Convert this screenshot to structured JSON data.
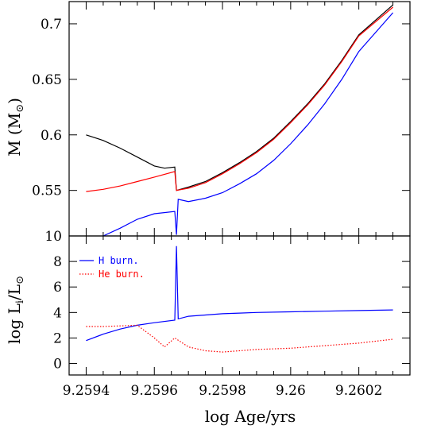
{
  "chart_data": [
    {
      "type": "line",
      "panel": "top",
      "ylabel": "M",
      "ylabel_unit": "M",
      "ylabel_sub": "⊙",
      "xlim": [
        9.25935,
        9.26035
      ],
      "ylim": [
        0.509,
        0.72
      ],
      "y_ticks": [
        0.55,
        0.6,
        0.65,
        0.7
      ],
      "y_tick_labels": [
        "0.55",
        "0.6",
        "0.65",
        "0.7"
      ],
      "series": [
        {
          "color": "#000000",
          "description_key": "total",
          "points": [
            [
              9.2594,
              0.6
            ],
            [
              9.25945,
              0.595
            ],
            [
              9.2595,
              0.588
            ],
            [
              9.25955,
              0.58
            ],
            [
              9.2596,
              0.572
            ],
            [
              9.25963,
              0.57
            ],
            [
              9.25966,
              0.571
            ],
            [
              9.259665,
              0.55
            ],
            [
              9.2597,
              0.553
            ],
            [
              9.25975,
              0.558
            ],
            [
              9.2598,
              0.566
            ],
            [
              9.25985,
              0.575
            ],
            [
              9.2599,
              0.585
            ],
            [
              9.25995,
              0.597
            ],
            [
              9.26,
              0.612
            ],
            [
              9.26005,
              0.628
            ],
            [
              9.2601,
              0.646
            ],
            [
              9.26015,
              0.667
            ],
            [
              9.2602,
              0.69
            ],
            [
              9.2603,
              0.717
            ]
          ]
        },
        {
          "color": "#ff0000",
          "description_key": "he-core",
          "points": [
            [
              9.2594,
              0.549
            ],
            [
              9.25945,
              0.551
            ],
            [
              9.2595,
              0.554
            ],
            [
              9.25955,
              0.558
            ],
            [
              9.2596,
              0.562
            ],
            [
              9.25966,
              0.567
            ],
            [
              9.259665,
              0.55
            ],
            [
              9.2597,
              0.552
            ],
            [
              9.25975,
              0.557
            ],
            [
              9.2598,
              0.565
            ],
            [
              9.25985,
              0.574
            ],
            [
              9.2599,
              0.584
            ],
            [
              9.25995,
              0.596
            ],
            [
              9.26,
              0.611
            ],
            [
              9.26005,
              0.627
            ],
            [
              9.2601,
              0.645
            ],
            [
              9.26015,
              0.666
            ],
            [
              9.2602,
              0.689
            ],
            [
              9.2603,
              0.715
            ]
          ]
        },
        {
          "color": "#0000ff",
          "description_key": "co-core",
          "points": [
            [
              9.25945,
              0.509
            ],
            [
              9.2595,
              0.516
            ],
            [
              9.25955,
              0.524
            ],
            [
              9.2596,
              0.529
            ],
            [
              9.25966,
              0.531
            ],
            [
              9.259665,
              0.51
            ],
            [
              9.25967,
              0.542
            ],
            [
              9.2597,
              0.54
            ],
            [
              9.25975,
              0.543
            ],
            [
              9.2598,
              0.548
            ],
            [
              9.25985,
              0.556
            ],
            [
              9.2599,
              0.565
            ],
            [
              9.25995,
              0.577
            ],
            [
              9.26,
              0.592
            ],
            [
              9.26005,
              0.609
            ],
            [
              9.2601,
              0.628
            ],
            [
              9.26015,
              0.65
            ],
            [
              9.2602,
              0.675
            ],
            [
              9.2603,
              0.71
            ]
          ]
        }
      ]
    },
    {
      "type": "line",
      "panel": "bottom",
      "xlabel": "log Age/yrs",
      "ylabel": "log L",
      "ylabel_sub_i": "i",
      "ylabel_unit": "L",
      "ylabel_sub": "⊙",
      "xlim": [
        9.25935,
        9.26035
      ],
      "ylim": [
        -0.9,
        10
      ],
      "x_ticks": [
        9.2594,
        9.2596,
        9.2598,
        9.26,
        9.2602
      ],
      "x_tick_labels": [
        "9.2594",
        "9.2596",
        "9.2598",
        "9.26",
        "9.2602"
      ],
      "y_ticks": [
        0,
        2,
        4,
        6,
        8,
        10
      ],
      "y_tick_labels": [
        "0",
        "2",
        "4",
        "6",
        "8",
        "10"
      ],
      "legend": [
        {
          "label": "H burn.",
          "color": "#0000ff",
          "style": "solid"
        },
        {
          "label": "He burn.",
          "color": "#ff0000",
          "style": "dotted"
        }
      ],
      "legend_position": "top-left",
      "series": [
        {
          "name": "H burn.",
          "color": "#0000ff",
          "points": [
            [
              9.2594,
              1.8
            ],
            [
              9.25945,
              2.3
            ],
            [
              9.2595,
              2.7
            ],
            [
              9.25955,
              3.0
            ],
            [
              9.2596,
              3.2
            ],
            [
              9.25966,
              3.4
            ],
            [
              9.259665,
              9.2
            ],
            [
              9.25967,
              3.5
            ],
            [
              9.2597,
              3.7
            ],
            [
              9.25975,
              3.8
            ],
            [
              9.2598,
              3.9
            ],
            [
              9.25985,
              3.95
            ],
            [
              9.2599,
              4.0
            ],
            [
              9.26,
              4.05
            ],
            [
              9.2601,
              4.1
            ],
            [
              9.2602,
              4.15
            ],
            [
              9.2603,
              4.2
            ]
          ]
        },
        {
          "name": "He burn.",
          "color": "#ff0000",
          "points": [
            [
              9.2594,
              2.9
            ],
            [
              9.25945,
              2.9
            ],
            [
              9.2595,
              2.95
            ],
            [
              9.25955,
              3.0
            ],
            [
              9.2596,
              2.0
            ],
            [
              9.25963,
              1.3
            ],
            [
              9.25966,
              2.0
            ],
            [
              9.2597,
              1.3
            ],
            [
              9.25975,
              1.0
            ],
            [
              9.2598,
              0.9
            ],
            [
              9.25985,
              1.0
            ],
            [
              9.2599,
              1.1
            ],
            [
              9.26,
              1.2
            ],
            [
              9.2601,
              1.4
            ],
            [
              9.2602,
              1.6
            ],
            [
              9.2603,
              1.9
            ]
          ]
        }
      ]
    }
  ]
}
